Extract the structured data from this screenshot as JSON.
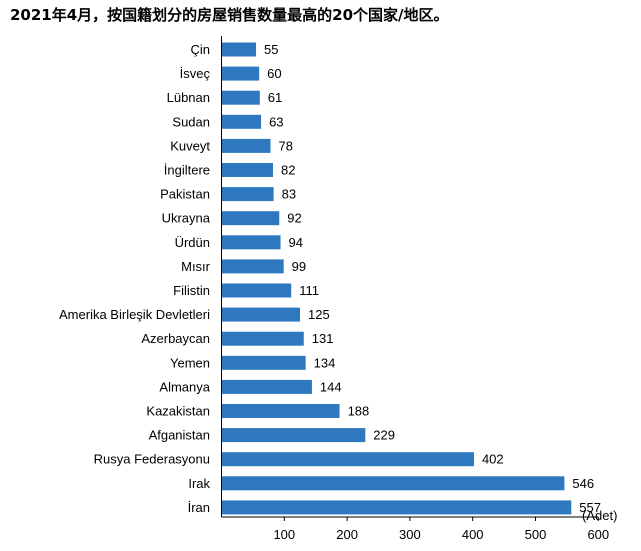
{
  "chart_data": {
    "type": "bar",
    "orientation": "horizontal",
    "title": "2021年4月，按国籍划分的房屋销售数量最高的20个国家/地区。",
    "unit_label": "(Adet)",
    "categories": [
      "Çin",
      "İsveç",
      "Lübnan",
      "Sudan",
      "Kuveyt",
      "İngiltere",
      "Pakistan",
      "Ukrayna",
      "Ürdün",
      "Mısır",
      "Filistin",
      "Amerika Birleşik Devletleri",
      "Azerbaycan",
      "Yemen",
      "Almanya",
      "Kazakistan",
      "Afganistan",
      "Rusya Federasyonu",
      "Irak",
      "İran"
    ],
    "values": [
      55,
      60,
      61,
      63,
      78,
      82,
      83,
      92,
      94,
      99,
      111,
      125,
      131,
      134,
      144,
      188,
      229,
      402,
      546,
      557
    ],
    "xlim": [
      0,
      600
    ],
    "xticks": [
      100,
      200,
      300,
      400,
      500,
      600
    ],
    "grid": false,
    "legend": "none",
    "bar_color": "#2e78c0"
  }
}
